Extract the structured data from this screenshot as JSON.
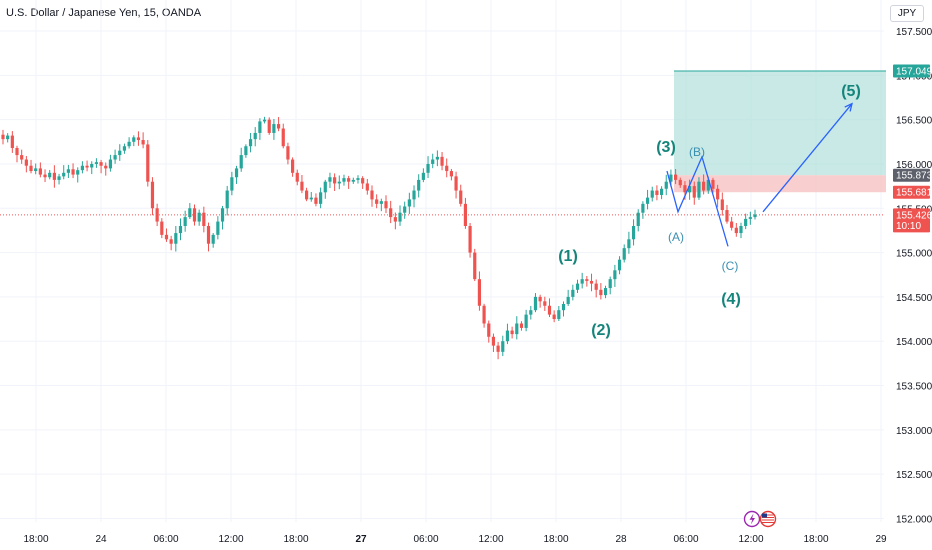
{
  "header": {
    "title": "U.S. Dollar / Japanese Yen, 15, OANDA"
  },
  "currency": "JPY",
  "colors": {
    "up": "#26a69a",
    "down": "#ef5350",
    "grid": "#f0f3fa",
    "wave_label": "#15857b",
    "wave_line": "#2962ff",
    "target_zone": "#b6e2dc",
    "entry_zone": "#f7c6c6",
    "current_price_line": "#ef5350"
  },
  "chart_data": {
    "type": "candlestick",
    "symbol": "USDJPY",
    "interval": "15",
    "source": "OANDA",
    "y_axis": {
      "ylim": [
        151.96,
        157.85
      ],
      "ticks": [
        "157.500",
        "157.000",
        "156.500",
        "156.000",
        "155.500",
        "155.000",
        "154.500",
        "154.000",
        "153.500",
        "153.000",
        "152.500",
        "152.000"
      ],
      "tick_values": [
        157.5,
        157.0,
        156.5,
        156.0,
        155.5,
        155.0,
        154.5,
        154.0,
        153.5,
        153.0,
        152.5,
        152.0
      ]
    },
    "x_axis": {
      "ticks": [
        "18:00",
        "24",
        "06:00",
        "12:00",
        "18:00",
        "27",
        "06:00",
        "12:00",
        "18:00",
        "28",
        "06:00",
        "12:00",
        "18:00",
        "29"
      ],
      "bold_ticks": [
        "27"
      ]
    },
    "price_labels": [
      {
        "label": "157.049",
        "value": 157.049,
        "kind": "target"
      },
      {
        "label": "155.873",
        "value": 155.873,
        "kind": "zone-top"
      },
      {
        "label": "155.681",
        "value": 155.681,
        "kind": "zone-bottom"
      },
      {
        "label": "155.426",
        "value": 155.426,
        "kind": "current",
        "timer": "10:10"
      }
    ],
    "zones": [
      {
        "name": "target",
        "from": 155.873,
        "to": 157.049
      },
      {
        "name": "entry",
        "from": 155.681,
        "to": 155.873
      }
    ],
    "current_price": 155.426,
    "wave_labels": [
      "(1)",
      "(2)",
      "(3)",
      "(4)",
      "(5)",
      "(A)",
      "(B)",
      "(C)"
    ],
    "wave_path_prices": [
      155.92,
      155.46,
      156.08,
      155.07
    ],
    "projection": {
      "from": 155.46,
      "to": 156.68
    },
    "closes": [
      156.28,
      156.32,
      156.18,
      156.1,
      156.05,
      155.98,
      155.92,
      155.95,
      155.88,
      155.85,
      155.9,
      155.82,
      155.86,
      155.9,
      155.94,
      155.88,
      155.93,
      155.98,
      155.96,
      156.0,
      156.02,
      155.98,
      155.95,
      156.05,
      156.1,
      156.15,
      156.2,
      156.25,
      156.3,
      156.27,
      156.22,
      155.8,
      155.5,
      155.35,
      155.2,
      155.15,
      155.1,
      155.22,
      155.3,
      155.4,
      155.5,
      155.35,
      155.45,
      155.3,
      155.1,
      155.2,
      155.35,
      155.5,
      155.7,
      155.85,
      155.95,
      156.1,
      156.2,
      156.28,
      156.35,
      156.48,
      156.5,
      156.35,
      156.45,
      156.4,
      156.2,
      156.05,
      155.9,
      155.8,
      155.7,
      155.6,
      155.62,
      155.55,
      155.68,
      155.8,
      155.85,
      155.78,
      155.8,
      155.84,
      155.8,
      155.82,
      155.84,
      155.78,
      155.7,
      155.6,
      155.55,
      155.58,
      155.5,
      155.4,
      155.35,
      155.45,
      155.52,
      155.6,
      155.7,
      155.82,
      155.9,
      156.0,
      156.05,
      156.08,
      155.98,
      155.92,
      155.86,
      155.7,
      155.55,
      155.3,
      155.0,
      154.7,
      154.4,
      154.2,
      154.05,
      153.95,
      153.88,
      154.0,
      154.12,
      154.08,
      154.2,
      154.15,
      154.3,
      154.35,
      154.5,
      154.45,
      154.4,
      154.3,
      154.25,
      154.35,
      154.42,
      154.5,
      154.58,
      154.65,
      154.7,
      154.68,
      154.65,
      154.58,
      154.52,
      154.6,
      154.7,
      154.8,
      154.92,
      155.05,
      155.15,
      155.3,
      155.45,
      155.55,
      155.62,
      155.7,
      155.65,
      155.72,
      155.8,
      155.88,
      155.82,
      155.76,
      155.68,
      155.75,
      155.62,
      155.8,
      155.7,
      155.82,
      155.72,
      155.6,
      155.48,
      155.35,
      155.28,
      155.22,
      155.3,
      155.38,
      155.4,
      155.43
    ]
  }
}
